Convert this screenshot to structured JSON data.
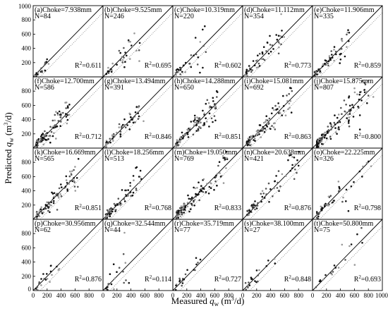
{
  "chart_data": {
    "type": "scatter",
    "xlabel": "Measured",
    "ylabel": "Predicted",
    "x_var": "q",
    "x_sub": "w",
    "y_var": "q",
    "y_sub": "w",
    "unit_prefix": "(m",
    "unit_sup": "3",
    "unit_suffix": "/d)",
    "xlim": [
      0,
      1000
    ],
    "ylim": [
      0,
      1000
    ],
    "xticks": [
      "0",
      "200",
      "400",
      "600",
      "800"
    ],
    "xtick_last": "1000",
    "yticks": [
      "200",
      "400",
      "600",
      "800"
    ],
    "ytick_top": "1000",
    "ytick_bottom": "0",
    "r2_prefix": "R",
    "r2_sup": "2",
    "panels": [
      {
        "label": "(a)",
        "choke": "Choke=7.938mm",
        "n": "N=84",
        "r2": "=0.611"
      },
      {
        "label": "(b)",
        "choke": "Choke=9.525mm",
        "n": "N=246",
        "r2": "=0.695"
      },
      {
        "label": "(c)",
        "choke": "Choke=10.319mm",
        "n": "N=220",
        "r2": "=0.602"
      },
      {
        "label": "(d)",
        "choke": "Choke=11.112mm",
        "n": "N=354",
        "r2": "=0.773"
      },
      {
        "label": "(e)",
        "choke": "Choke=11.906mm",
        "n": "N=335",
        "r2": "=0.859"
      },
      {
        "label": "(f)",
        "choke": "Choke=12.700mm",
        "n": "N=586",
        "r2": "=0.712"
      },
      {
        "label": "(g)",
        "choke": "Choke=13.494mm",
        "n": "N=391",
        "r2": "=0.846"
      },
      {
        "label": "(h)",
        "choke": "Choke=14.288mm",
        "n": "N=650",
        "r2": "=0.851"
      },
      {
        "label": "(i)",
        "choke": "Choke=15.081mm",
        "n": "N=692",
        "r2": "=0.863"
      },
      {
        "label": "(j)",
        "choke": "Choke=15.875mm",
        "n": "N=807",
        "r2": "=0.800"
      },
      {
        "label": "(k)",
        "choke": "Choke=16.669mm",
        "n": "N=565",
        "r2": "=0.851"
      },
      {
        "label": "(l)",
        "choke": "Choke=18.256mm",
        "n": "N=513",
        "r2": "=0.768"
      },
      {
        "label": "(m)",
        "choke": "Choke=19.050mm",
        "n": "N=769",
        "r2": "=0.833"
      },
      {
        "label": "(n)",
        "choke": "Choke=20.638mm",
        "n": "N=421",
        "r2": "=0.876"
      },
      {
        "label": "(o)",
        "choke": "Choke=22.225mm",
        "n": "N=326",
        "r2": "=0.798"
      },
      {
        "label": "(p)",
        "choke": "Choke=30.956mm",
        "n": "N=62",
        "r2": "=0.876"
      },
      {
        "label": "(q)",
        "choke": "Choke=32.544mm",
        "n": "N=44",
        "r2": "=0.114"
      },
      {
        "label": "(r)",
        "choke": "Choke=35.719mm",
        "n": "N=77",
        "r2": "=0.727"
      },
      {
        "label": "(s)",
        "choke": "Choke=38.100mm",
        "n": "N=27",
        "r2": "=0.848"
      },
      {
        "label": "(t)",
        "choke": "Choke=50.800mm",
        "n": "N=75",
        "r2": "=0.693"
      }
    ]
  }
}
